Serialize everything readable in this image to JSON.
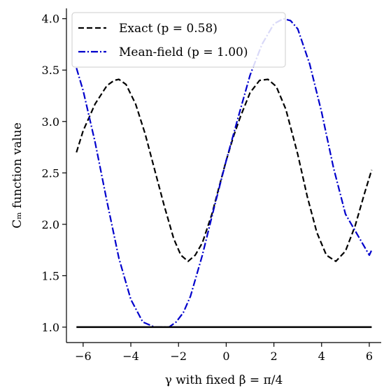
{
  "chart_data": {
    "type": "line",
    "title": "",
    "xlabel": "γ with fixed β = π/4",
    "ylabel": "Cₘ function value",
    "xlim": [
      -6.7,
      6.5
    ],
    "ylim": [
      0.85,
      4.1
    ],
    "xticks": [
      -6,
      -4,
      -2,
      0,
      2,
      4,
      6
    ],
    "xtick_labels": [
      "−6",
      "−4",
      "−2",
      "0",
      "2",
      "4",
      "6"
    ],
    "yticks": [
      1.0,
      1.5,
      2.0,
      2.5,
      3.0,
      3.5,
      4.0
    ],
    "ytick_labels": [
      "1.0",
      "1.5",
      "2.0",
      "2.5",
      "3.0",
      "3.5",
      "4.0"
    ],
    "grid": false,
    "legend_position": "upper-left",
    "series": [
      {
        "name": "Exact (p = 0.58)",
        "color": "#000000",
        "style": "dashed",
        "x": [
          -6.28,
          -6.0,
          -5.5,
          -5.0,
          -4.7,
          -4.5,
          -4.2,
          -3.8,
          -3.4,
          -3.0,
          -2.6,
          -2.2,
          -1.9,
          -1.6,
          -1.3,
          -1.0,
          -0.6,
          -0.2,
          0.0,
          0.3,
          0.6,
          1.0,
          1.4,
          1.75,
          2.1,
          2.5,
          3.0,
          3.4,
          3.8,
          4.2,
          4.6,
          5.0,
          5.4,
          5.8,
          6.1
        ],
        "y": [
          2.7,
          2.91,
          3.17,
          3.35,
          3.4,
          3.41,
          3.36,
          3.17,
          2.88,
          2.53,
          2.18,
          1.86,
          1.7,
          1.64,
          1.7,
          1.82,
          2.1,
          2.45,
          2.62,
          2.85,
          3.05,
          3.28,
          3.4,
          3.41,
          3.34,
          3.12,
          2.68,
          2.27,
          1.92,
          1.7,
          1.64,
          1.74,
          1.98,
          2.3,
          2.53
        ]
      },
      {
        "name": "Mean-field (p = 1.00)",
        "color": "#0000cc",
        "style": "dashdot",
        "x": [
          -6.28,
          -6.0,
          -5.5,
          -5.0,
          -4.5,
          -4.0,
          -3.5,
          -3.0,
          -2.7,
          -2.4,
          -2.1,
          -1.8,
          -1.5,
          -1.0,
          -0.5,
          0.0,
          0.5,
          1.0,
          1.5,
          2.0,
          2.4,
          2.7,
          3.0,
          3.5,
          4.0,
          4.5,
          5.0,
          5.5,
          6.0,
          6.1
        ],
        "y": [
          3.52,
          3.3,
          2.8,
          2.22,
          1.67,
          1.27,
          1.05,
          1.0,
          1.0,
          1.0,
          1.05,
          1.14,
          1.3,
          1.7,
          2.17,
          2.62,
          3.04,
          3.45,
          3.75,
          3.95,
          4.0,
          3.98,
          3.9,
          3.56,
          3.09,
          2.55,
          2.1,
          1.9,
          1.7,
          1.75
        ]
      },
      {
        "name": "",
        "color": "#000000",
        "style": "solid",
        "x": [
          -6.28,
          6.1
        ],
        "y": [
          1.0,
          1.0
        ]
      }
    ],
    "legend": [
      {
        "text": "Exact (p = 0.58)",
        "color": "#000000",
        "style": "dashed"
      },
      {
        "text": "Mean-field (p = 1.00)",
        "color": "#0000cc",
        "style": "dashdot"
      }
    ]
  }
}
